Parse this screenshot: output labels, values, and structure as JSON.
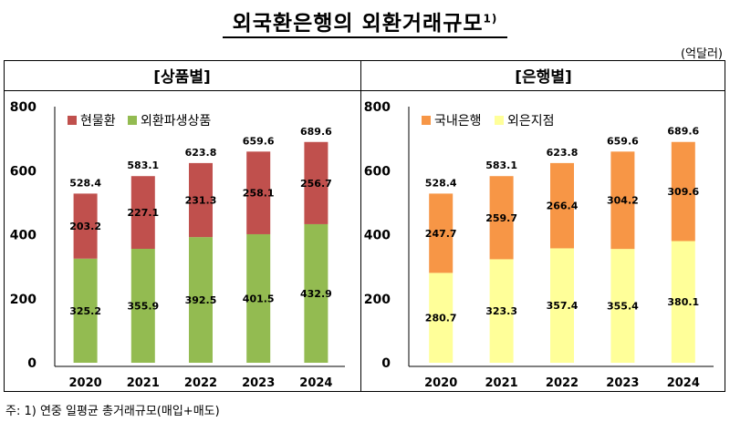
{
  "title": "외국환은행의 외환거래규모",
  "title_sup": "1)",
  "unit": "(억달러)",
  "footnote": "주: 1) 연중 일평균 총거래규모(매입+매도)",
  "chart_data": [
    {
      "type": "bar",
      "stacked": true,
      "title": "[상품별]",
      "categories": [
        "2020",
        "2021",
        "2022",
        "2023",
        "2024"
      ],
      "ylim": [
        0,
        800
      ],
      "yticks": [
        0,
        200,
        400,
        600,
        800
      ],
      "legend_position": "top-left",
      "series": [
        {
          "name": "외환파생상품",
          "color": "#93BB51",
          "values": [
            325.2,
            355.9,
            392.5,
            401.5,
            432.9
          ]
        },
        {
          "name": "현물환",
          "color": "#C0504D",
          "values": [
            203.2,
            227.1,
            231.3,
            258.1,
            256.7
          ]
        }
      ],
      "totals": [
        528.4,
        583.1,
        623.8,
        659.6,
        689.6
      ]
    },
    {
      "type": "bar",
      "stacked": true,
      "title": "[은행별]",
      "categories": [
        "2020",
        "2021",
        "2022",
        "2023",
        "2024"
      ],
      "ylim": [
        0,
        800
      ],
      "yticks": [
        0,
        200,
        400,
        600,
        800
      ],
      "legend_position": "top-left",
      "series": [
        {
          "name": "외은지점",
          "color": "#FFFF99",
          "values": [
            280.7,
            323.3,
            357.4,
            355.4,
            380.1
          ]
        },
        {
          "name": "국내은행",
          "color": "#F79646",
          "values": [
            247.7,
            259.7,
            266.4,
            304.2,
            309.6
          ]
        }
      ],
      "totals": [
        528.4,
        583.1,
        623.8,
        659.6,
        689.6
      ]
    }
  ]
}
